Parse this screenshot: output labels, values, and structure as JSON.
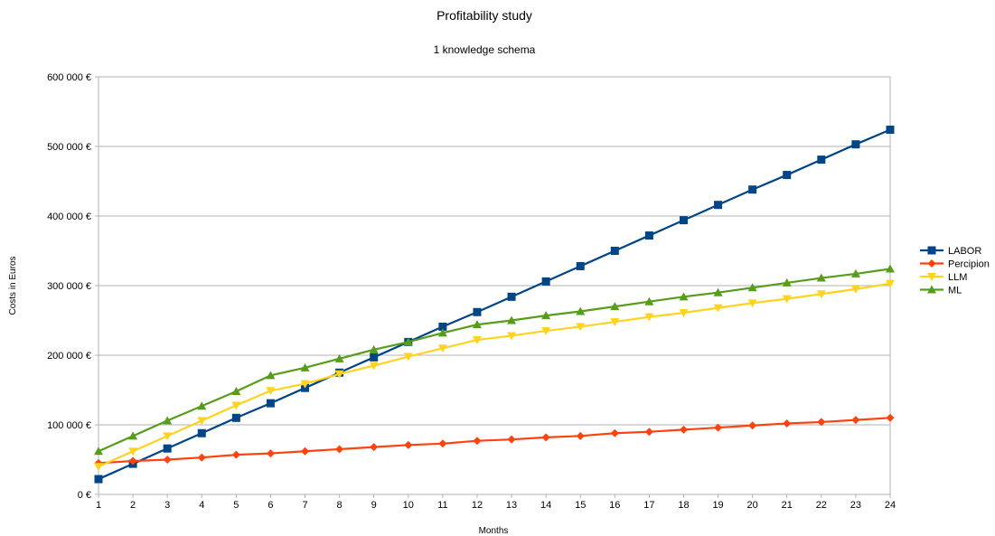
{
  "chart_data": {
    "type": "line",
    "title": "Profitability study",
    "subtitle": "1 knowledge schema",
    "xlabel": "Months",
    "ylabel": "Costs in Euros",
    "x": [
      1,
      2,
      3,
      4,
      5,
      6,
      7,
      8,
      9,
      10,
      11,
      12,
      13,
      14,
      15,
      16,
      17,
      18,
      19,
      20,
      21,
      22,
      23,
      24
    ],
    "ylim": [
      0,
      600000
    ],
    "yticks": [
      0,
      100000,
      200000,
      300000,
      400000,
      500000,
      600000
    ],
    "ytick_labels": [
      "0 €",
      "100 000 €",
      "200 000 €",
      "300 000 €",
      "400 000 €",
      "500 000 €",
      "600 000 €"
    ],
    "grid": true,
    "legend": {
      "position": "right"
    },
    "series": [
      {
        "name": "LABOR",
        "color": "#004586",
        "marker": "square",
        "values": [
          22000,
          44000,
          66000,
          88000,
          110000,
          131000,
          153000,
          175000,
          197000,
          219000,
          241000,
          262000,
          284000,
          306000,
          328000,
          350000,
          372000,
          394000,
          416000,
          438000,
          459000,
          481000,
          503000,
          524000
        ]
      },
      {
        "name": "Percipion",
        "color": "#FF420E",
        "marker": "diamond",
        "values": [
          45000,
          48000,
          50000,
          53000,
          57000,
          59000,
          62000,
          65000,
          68000,
          71000,
          73000,
          77000,
          79000,
          82000,
          84000,
          88000,
          90000,
          93000,
          96000,
          99000,
          102000,
          104000,
          107000,
          110000
        ]
      },
      {
        "name": "LLM",
        "color": "#FFD320",
        "marker": "triangle-down",
        "values": [
          40000,
          62000,
          84000,
          106000,
          128000,
          149000,
          159000,
          173000,
          185000,
          198000,
          210000,
          222000,
          228000,
          235000,
          241000,
          248000,
          255000,
          261000,
          268000,
          275000,
          281000,
          288000,
          295000,
          303000
        ]
      },
      {
        "name": "ML",
        "color": "#579D1C",
        "marker": "triangle-up",
        "values": [
          62000,
          84000,
          106000,
          127000,
          148000,
          171000,
          182000,
          195000,
          208000,
          219000,
          232000,
          244000,
          250000,
          257000,
          263000,
          270000,
          277000,
          284000,
          290000,
          297000,
          304000,
          311000,
          317000,
          324000
        ]
      }
    ]
  }
}
